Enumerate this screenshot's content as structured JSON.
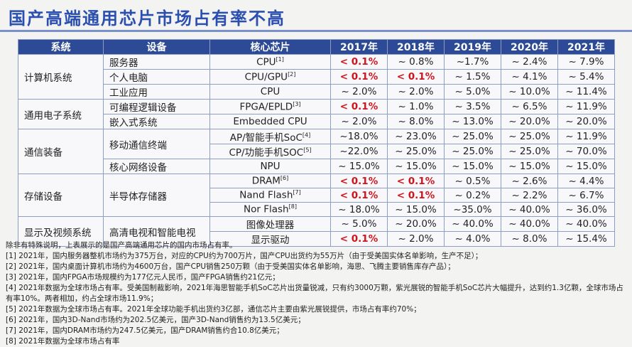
{
  "header": {
    "title": "国产高端通用芯片市场占有率不高"
  },
  "table": {
    "columns": [
      "系统",
      "设备",
      "核心芯片",
      "2017年",
      "2018年",
      "2019年",
      "2020年",
      "2021年"
    ],
    "systems": [
      {
        "name": "计算机系统",
        "devices": [
          {
            "name": "服务器",
            "chips": [
              {
                "name": "CPU",
                "note": "[1]",
                "values": [
                  "< 0.1%",
                  "~ 0.8%",
                  "~1.7%",
                  "~ 2.4%",
                  "~ 7.9%"
                ]
              }
            ]
          },
          {
            "name": "个人电脑",
            "chips": [
              {
                "name": "CPU/GPU",
                "note": "[2]",
                "values": [
                  "< 0.1%",
                  "< 0.1%",
                  "~ 1.5%",
                  "~ 4.1%",
                  "~ 5.4%"
                ]
              }
            ]
          },
          {
            "name": "工业应用",
            "chips": [
              {
                "name": "CPU",
                "values": [
                  "~ 2.0%",
                  "~ 2.0%",
                  "~ 5.0%",
                  "~ 10.0%",
                  "~ 11.4%"
                ]
              }
            ]
          }
        ]
      },
      {
        "name": "通用电子系统",
        "devices": [
          {
            "name": "可编程逻辑设备",
            "chips": [
              {
                "name": "FPGA/EPLD",
                "note": "[3]",
                "values": [
                  "< 0.1%",
                  "~ 1.0%",
                  "~ 3.5%",
                  "~ 6.5%",
                  "~ 11.9%"
                ]
              }
            ]
          },
          {
            "name": "嵌入式系统",
            "chips": [
              {
                "name": "Embedded CPU",
                "values": [
                  "~ 2.0%",
                  "~ 8.0%",
                  "~ 13.0%",
                  "~ 20.0%",
                  "~ 20.0%"
                ]
              }
            ]
          }
        ]
      },
      {
        "name": "通信装备",
        "devices": [
          {
            "name": "移动通信终端",
            "chips": [
              {
                "name": "AP/智能手机SoC",
                "note": "[4]",
                "values": [
                  "~18.0%",
                  "~ 23.0%",
                  "~ 25.0%",
                  "~ 25.0%",
                  "~ 11.9%"
                ]
              },
              {
                "name": "CP/功能手机SOC",
                "note": "[5]",
                "values": [
                  "~22.0%",
                  "~ 25.0%",
                  "~ 25.0%",
                  "~ 25.0%",
                  "~ 70.0%"
                ]
              }
            ]
          },
          {
            "name": "核心网络设备",
            "chips": [
              {
                "name": "NPU",
                "values": [
                  "~ 15.0%",
                  "~ 15.0%",
                  "~ 15.0%",
                  "~ 15.0%",
                  "~ 15.0%"
                ]
              }
            ]
          }
        ]
      },
      {
        "name": "存储设备",
        "devices": [
          {
            "name": "半导体存储器",
            "chips": [
              {
                "name": "DRAM",
                "note": "[6]",
                "values": [
                  "< 0.1%",
                  "< 0.1%",
                  "~ 0.5%",
                  "~ 2.6%",
                  "~ 4.4%"
                ]
              },
              {
                "name": "Nand Flash",
                "note": "[7]",
                "values": [
                  "< 0.1%",
                  "< 0.1%",
                  "~ 0.2%",
                  "~ 2.2%",
                  "~ 6.7%"
                ]
              },
              {
                "name": "Nor Flash",
                "note": "[8]",
                "values": [
                  "~ 18.0%",
                  "~ 15.0%",
                  "~35.0%",
                  "~ 40.0%",
                  "~ 36.0%"
                ]
              }
            ]
          }
        ]
      },
      {
        "name": "显示及视频系统",
        "devices": [
          {
            "name": "高清电视和智能电视",
            "chips": [
              {
                "name": "图像处理器",
                "values": [
                  "~ 5.0%",
                  "~ 20.0%",
                  "~ 40.0%",
                  "~ 40.0%",
                  "~ 40.0%"
                ]
              },
              {
                "name": "显示驱动",
                "values": [
                  "< 0.1%",
                  "~ 2.0%",
                  "~ 4.0%",
                  "~ 8.0%",
                  "~ 15.4%"
                ]
              }
            ]
          }
        ]
      }
    ]
  },
  "notes": [
    "除非有特殊说明，上表展示的是国产高端通用芯片的国内市场占有率。",
    "[1]  2021年，国内服务器整机市场约为375万台，对应的CPU约为700万片，国产CPU出货约为55万片（由于受美国实体名单影响，生产不足）；",
    "[2]  2021年，国内桌面计算机市场约为4600万台，国产CPU销售250万颗（由于受美国实体名单影响，海思、飞腾主要销售库存产品）；",
    "[3]  2021年，国内FPGA市场规模约为177亿元人民币，国产FPGA销售约21亿元；",
    "[4]  2021年数据为全球市场占有率。受美国制裁影响，2021年海思智能手机SoC芯片出货量锐减，只有约3000万颗，紫光展锐的智能手机SoC芯片大幅提升，达到约1.3亿颗，全球市场占有率10%。两者相加，约占全球市场11.9%；",
    "[5]  2021年数据为全球市场占有率。2021年全球功能手机出货约3亿部，通信芯片主要由紫光展锐提供，市场占有率约70%；",
    "[6]  2021年，国内3D-Nand市场约为202.5亿美元，国产3D-Nand销售约为13.5亿美元；",
    "[7]  2021年，国内DRAM市场约为247.5亿美元，国产DRAM销售约合10.8亿美元；",
    "[8]  2021年数据为全球市场占有率"
  ]
}
